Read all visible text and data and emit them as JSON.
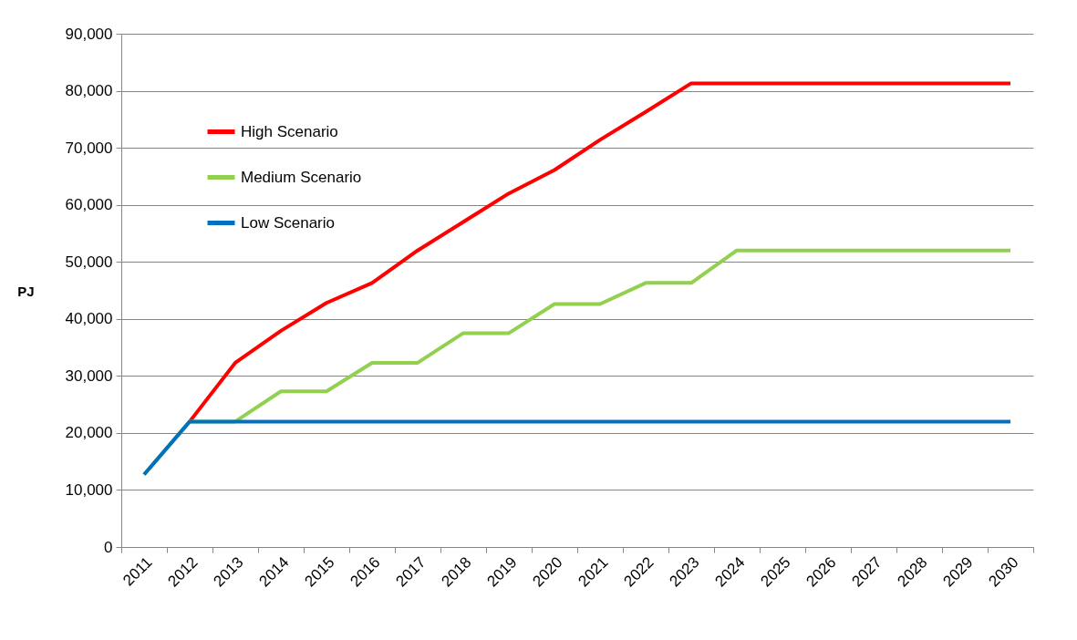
{
  "chart_data": {
    "type": "line",
    "ylabel": "PJ",
    "categories": [
      "2011",
      "2012",
      "2013",
      "2014",
      "2015",
      "2016",
      "2017",
      "2018",
      "2019",
      "2020",
      "2021",
      "2022",
      "2023",
      "2024",
      "2025",
      "2026",
      "2027",
      "2028",
      "2029",
      "2030"
    ],
    "series": [
      {
        "name": "High Scenario",
        "color": "#ff0000",
        "values": [
          null,
          22000,
          32300,
          37900,
          42800,
          46300,
          52000,
          57000,
          62000,
          66100,
          71400,
          76300,
          81300,
          81300,
          81300,
          81300,
          81300,
          81300,
          81300,
          81300
        ]
      },
      {
        "name": "Medium Scenario",
        "color": "#92d050",
        "values": [
          12700,
          22000,
          22000,
          27300,
          27300,
          32300,
          32300,
          37500,
          37500,
          42600,
          42600,
          46300,
          46300,
          52000,
          52000,
          52000,
          52000,
          52000,
          52000,
          52000
        ]
      },
      {
        "name": "Low Scenario",
        "color": "#0070c0",
        "values": [
          12700,
          22000,
          22000,
          22000,
          22000,
          22000,
          22000,
          22000,
          22000,
          22000,
          22000,
          22000,
          22000,
          22000,
          22000,
          22000,
          22000,
          22000,
          22000,
          22000
        ]
      }
    ],
    "ylim": [
      0,
      90000
    ],
    "yticks": [
      0,
      {
        "value": 10000,
        "label": "10,000"
      },
      {
        "value": 20000,
        "label": "20,000"
      },
      {
        "value": 30000,
        "label": "30,000"
      },
      {
        "value": 40000,
        "label": "40,000"
      },
      {
        "value": 50000,
        "label": "50,000"
      },
      {
        "value": 60000,
        "label": "60,000"
      },
      {
        "value": 70000,
        "label": "70,000"
      },
      {
        "value": 80000,
        "label": "80,000"
      },
      {
        "value": 90000,
        "label": "90,000"
      }
    ],
    "grid": "y",
    "legend": "top left"
  }
}
